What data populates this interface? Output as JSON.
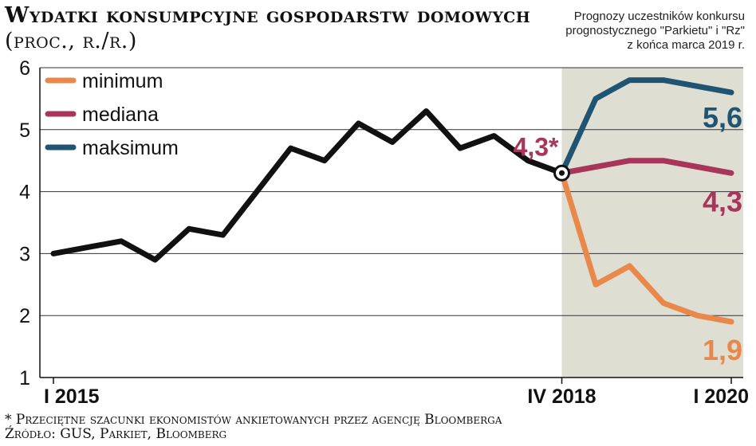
{
  "header": {
    "title": "Wydatki konsumpcyjne gospodarstw domowych",
    "unit": "(proc., r./r.)",
    "note_lines": [
      "Prognozy uczestników konkursu",
      "prognostycznego \"Parkietu\" i \"Rz\"",
      "z końca marca 2019 r."
    ]
  },
  "chart_data": {
    "type": "line",
    "ylim": [
      1,
      6
    ],
    "yticks": [
      "1",
      "2",
      "3",
      "4",
      "5",
      "6"
    ],
    "x_tick_labels": [
      "I 2015",
      "IV 2018",
      "I 2020"
    ],
    "grid": true,
    "legend_position": "top-left",
    "forecast_region": "shaded, from IV 2018 to I 2020",
    "history": {
      "color": "#111111",
      "x": [
        "I 2015",
        "II 2015",
        "III 2015",
        "IV 2015",
        "I 2016",
        "II 2016",
        "III 2016",
        "IV 2016",
        "I 2017",
        "II 2017",
        "III 2017",
        "IV 2017",
        "I 2018",
        "II 2018",
        "III 2018",
        "IV 2018"
      ],
      "values": [
        3.0,
        3.1,
        3.2,
        2.9,
        3.4,
        3.3,
        4.0,
        4.7,
        4.5,
        5.1,
        4.8,
        5.3,
        4.7,
        4.9,
        4.5,
        4.3
      ]
    },
    "anchor": {
      "x": "IV 2018",
      "value": 4.3,
      "label": "4,3*",
      "label_color": "#a8355a"
    },
    "series": [
      {
        "name": "minimum",
        "color": "#e8894b",
        "x": [
          "IV 2018",
          "I 2019",
          "II 2019",
          "III 2019",
          "IV 2019",
          "I 2020"
        ],
        "values": [
          4.3,
          2.5,
          2.8,
          2.2,
          2.0,
          1.9
        ],
        "end_label": "1,9"
      },
      {
        "name": "mediana",
        "color": "#a8355a",
        "x": [
          "IV 2018",
          "I 2019",
          "II 2019",
          "III 2019",
          "IV 2019",
          "I 2020"
        ],
        "values": [
          4.3,
          4.4,
          4.5,
          4.5,
          4.4,
          4.3
        ],
        "end_label": "4,3"
      },
      {
        "name": "maksimum",
        "color": "#1f5573",
        "x": [
          "IV 2018",
          "I 2019",
          "II 2019",
          "III 2019",
          "IV 2019",
          "I 2020"
        ],
        "values": [
          4.3,
          5.5,
          5.8,
          5.8,
          5.7,
          5.6
        ],
        "end_label": "5,6"
      }
    ]
  },
  "colors": {
    "forecast_bg": "#deded3",
    "grid": "#333333"
  },
  "footer": {
    "footnote": "* Przeciętne szacunki ekonomistów ankietowanych przez agencję Bloomberga",
    "source": "Źródło: GUS, Parkiet, Bloomberg"
  }
}
